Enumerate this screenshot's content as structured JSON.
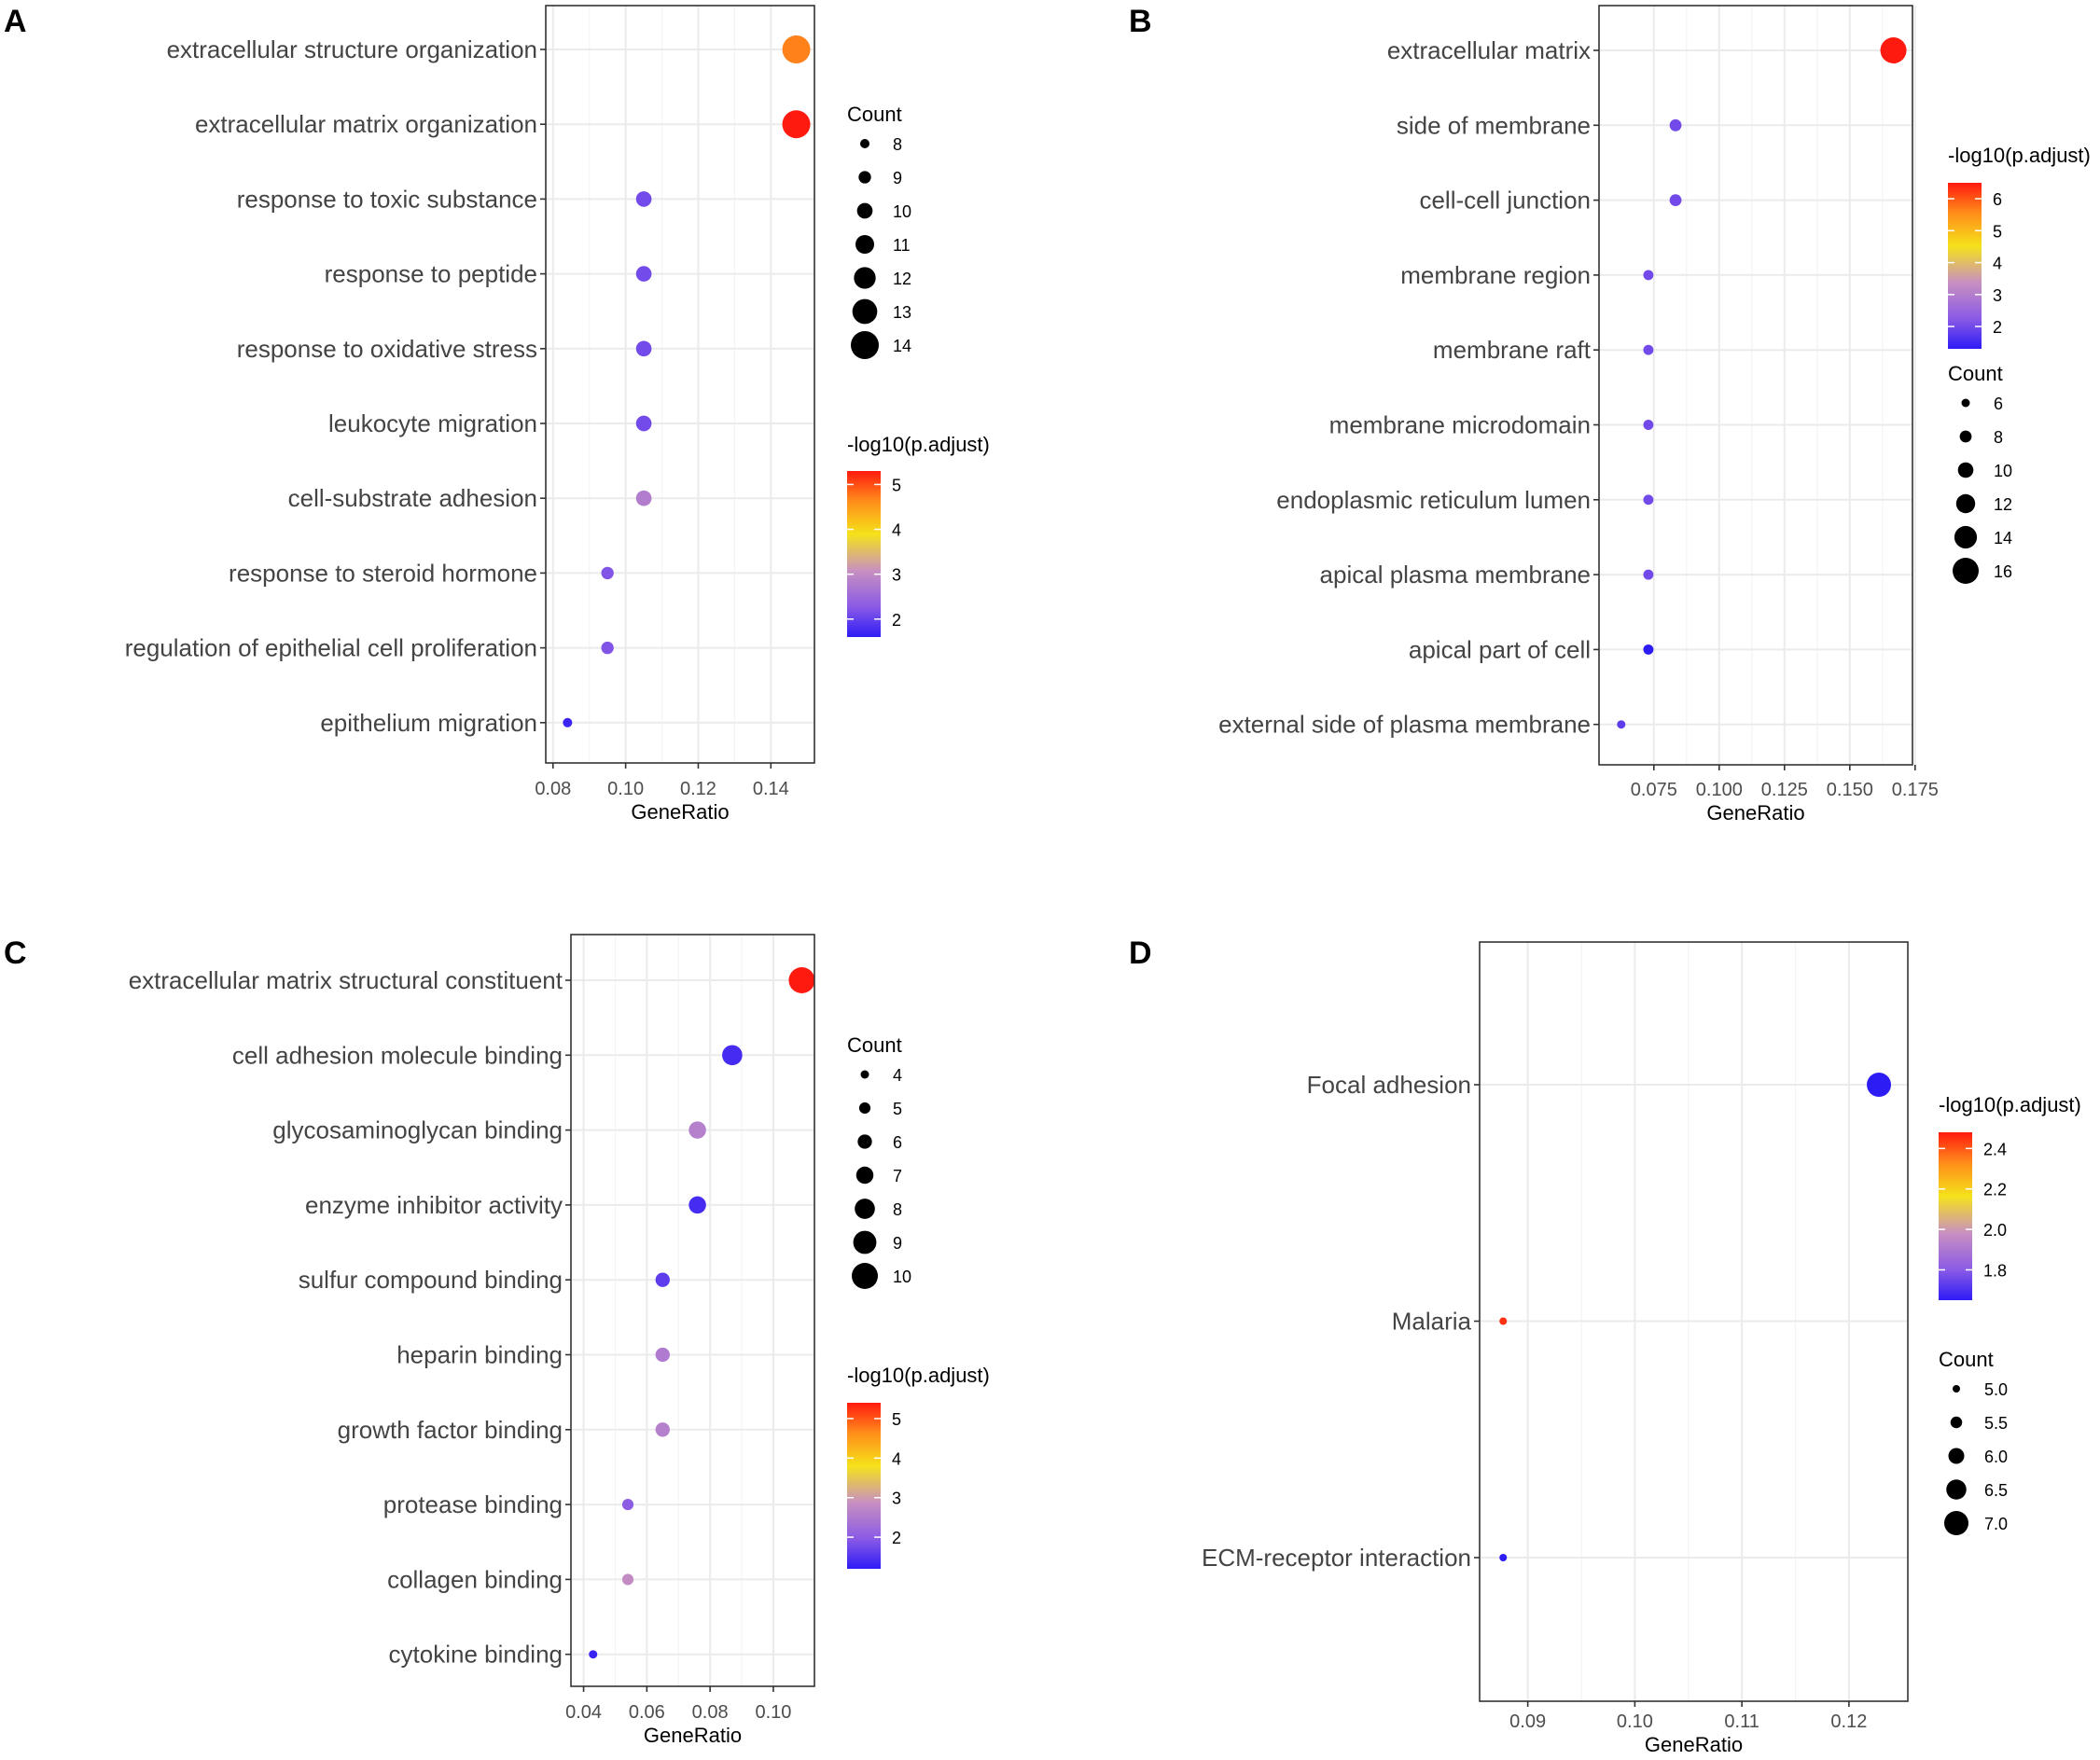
{
  "chart_data": [
    {
      "panel": "A",
      "type": "scatter",
      "xlabel": "GeneRatio",
      "xlim": [
        0.078,
        0.152
      ],
      "xticks": [
        0.08,
        0.1,
        0.12,
        0.14
      ],
      "xtick_labels": [
        "0.08",
        "0.10",
        "0.12",
        "0.14"
      ],
      "terms": [
        "extracellular structure organization",
        "extracellular matrix organization",
        "response to toxic substance",
        "response to peptide",
        "response to oxidative stress",
        "leukocyte migration",
        "cell-substrate adhesion",
        "response to steroid hormone",
        "regulation of epithelial cell proliferation",
        "epithelium migration"
      ],
      "gene_ratio": [
        0.147,
        0.147,
        0.105,
        0.105,
        0.105,
        0.105,
        0.105,
        0.095,
        0.095,
        0.084
      ],
      "count": [
        14,
        14,
        10,
        10,
        10,
        10,
        10,
        9,
        9,
        8
      ],
      "neg_log10_padj": [
        4.7,
        5.3,
        2.1,
        2.1,
        2.1,
        2.1,
        2.8,
        2.2,
        2.2,
        1.7
      ],
      "color_legend": {
        "title": "-log10(p.adjust)",
        "range": [
          1.6,
          5.3
        ],
        "ticks": [
          2,
          3,
          4,
          5
        ],
        "tick_labels": [
          "2",
          "3",
          "4",
          "5"
        ]
      },
      "size_legend": {
        "title": "Count",
        "values": [
          8,
          9,
          10,
          11,
          12,
          13,
          14
        ],
        "labels": [
          "8",
          "9",
          "10",
          "11",
          "12",
          "13",
          "14"
        ]
      },
      "legend_order": "size-first"
    },
    {
      "panel": "B",
      "type": "scatter",
      "xlabel": "GeneRatio",
      "xlim": [
        0.054,
        0.174
      ],
      "xticks": [
        0.075,
        0.1,
        0.125,
        0.15,
        0.175
      ],
      "xtick_labels": [
        "0.075",
        "0.100",
        "0.125",
        "0.150",
        "0.175"
      ],
      "terms": [
        "extracellular matrix",
        "side of membrane",
        "cell-cell junction",
        "membrane region",
        "membrane raft",
        "membrane microdomain",
        "endoplasmic reticulum lumen",
        "apical plasma membrane",
        "apical part of cell",
        "external side of plasma membrane"
      ],
      "gene_ratio": [
        0.1667,
        0.0833,
        0.0833,
        0.0729,
        0.0729,
        0.0729,
        0.0729,
        0.0729,
        0.0729,
        0.0625
      ],
      "count": [
        16,
        8,
        8,
        7,
        7,
        7,
        7,
        7,
        7,
        6
      ],
      "neg_log10_padj": [
        6.5,
        2.0,
        2.0,
        2.0,
        2.0,
        2.0,
        2.0,
        2.0,
        1.3,
        1.8
      ],
      "color_legend": {
        "title": "-log10(p.adjust)",
        "range": [
          1.3,
          6.5
        ],
        "ticks": [
          2,
          3,
          4,
          5,
          6
        ],
        "tick_labels": [
          "2",
          "3",
          "4",
          "5",
          "6"
        ]
      },
      "size_legend": {
        "title": "Count",
        "values": [
          6,
          8,
          10,
          12,
          14,
          16
        ],
        "labels": [
          "6",
          "8",
          "10",
          "12",
          "14",
          "16"
        ]
      },
      "legend_order": "color-first"
    },
    {
      "panel": "C",
      "type": "scatter",
      "xlabel": "GeneRatio",
      "xlim": [
        0.036,
        0.113
      ],
      "xticks": [
        0.04,
        0.06,
        0.08,
        0.1
      ],
      "xtick_labels": [
        "0.04",
        "0.06",
        "0.08",
        "0.10"
      ],
      "terms": [
        "extracellular matrix structural constituent",
        "cell adhesion molecule binding",
        "glycosaminoglycan binding",
        "enzyme inhibitor activity",
        "sulfur compound binding",
        "heparin binding",
        "growth factor binding",
        "protease binding",
        "collagen binding",
        "cytokine binding"
      ],
      "gene_ratio": [
        0.109,
        0.087,
        0.076,
        0.076,
        0.065,
        0.065,
        0.065,
        0.054,
        0.054,
        0.043
      ],
      "count": [
        10,
        8,
        7,
        7,
        6,
        6,
        6,
        5,
        5,
        4
      ],
      "neg_log10_padj": [
        5.4,
        1.4,
        2.6,
        1.4,
        1.6,
        2.5,
        2.6,
        2.0,
        2.8,
        1.3
      ],
      "color_legend": {
        "title": "-log10(p.adjust)",
        "range": [
          1.2,
          5.4
        ],
        "ticks": [
          2,
          3,
          4,
          5
        ],
        "tick_labels": [
          "2",
          "3",
          "4",
          "5"
        ]
      },
      "size_legend": {
        "title": "Count",
        "values": [
          4,
          5,
          6,
          7,
          8,
          9,
          10
        ],
        "labels": [
          "4",
          "5",
          "6",
          "7",
          "8",
          "9",
          "10"
        ]
      },
      "legend_order": "size-first"
    },
    {
      "panel": "D",
      "type": "scatter",
      "xlabel": "GeneRatio",
      "xlim": [
        0.0855,
        0.1255
      ],
      "xticks": [
        0.09,
        0.1,
        0.11,
        0.12
      ],
      "xtick_labels": [
        "0.09",
        "0.10",
        "0.11",
        "0.12"
      ],
      "terms": [
        "Focal adhesion",
        "Malaria",
        "ECM-receptor interaction"
      ],
      "gene_ratio": [
        0.1228,
        0.0877,
        0.0877
      ],
      "count": [
        7,
        5,
        5
      ],
      "neg_log10_padj": [
        1.65,
        2.45,
        1.65
      ],
      "color_legend": {
        "title": "-log10(p.adjust)",
        "range": [
          1.65,
          2.48
        ],
        "ticks": [
          1.8,
          2.0,
          2.2,
          2.4
        ],
        "tick_labels": [
          "1.8",
          "2.0",
          "2.2",
          "2.4"
        ]
      },
      "size_legend": {
        "title": "Count",
        "values": [
          5.0,
          5.5,
          6.0,
          6.5,
          7.0
        ],
        "labels": [
          "5.0",
          "5.5",
          "6.0",
          "6.5",
          "7.0"
        ]
      },
      "legend_order": "color-first"
    }
  ],
  "colors": {
    "low": "#2e1cf5",
    "mid_low": "#8a5ae6",
    "mid": "#c890c0",
    "mid_high": "#f5e21a",
    "high_orange": "#ff8c1a",
    "high": "#ff1a0f",
    "grid": "#ebebeb",
    "axis_text": "#4d4d4d",
    "term_text": "#444444",
    "panel_border": "#333333",
    "size_dot": "#000000"
  }
}
